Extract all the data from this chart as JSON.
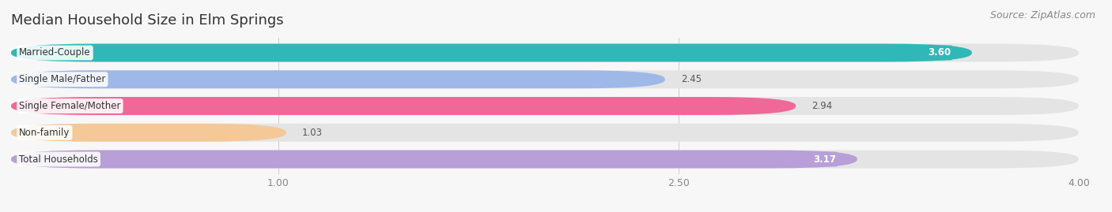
{
  "title": "Median Household Size in Elm Springs",
  "source": "Source: ZipAtlas.com",
  "categories": [
    "Married-Couple",
    "Single Male/Father",
    "Single Female/Mother",
    "Non-family",
    "Total Households"
  ],
  "values": [
    3.6,
    2.45,
    2.94,
    1.03,
    3.17
  ],
  "bar_colors": [
    "#30b8b8",
    "#9eb8e8",
    "#f06898",
    "#f5c898",
    "#b89fd8"
  ],
  "value_text_colors": [
    "white",
    "#555555",
    "white",
    "#555555",
    "white"
  ],
  "xlim_data": [
    0,
    4.0
  ],
  "xlim_display": [
    0,
    4.0
  ],
  "xticks": [
    1.0,
    2.5,
    4.0
  ],
  "bar_height": 0.68,
  "bar_gap": 0.32,
  "background_color": "#f7f7f7",
  "bar_bg_color": "#e4e4e4",
  "label_fontsize": 8.5,
  "value_fontsize": 8.5,
  "title_fontsize": 13,
  "source_fontsize": 9,
  "value_inside_threshold": 3.0
}
